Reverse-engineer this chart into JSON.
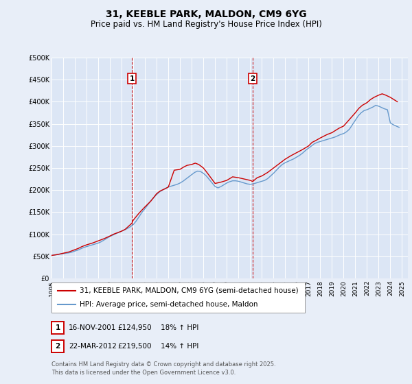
{
  "title": "31, KEEBLE PARK, MALDON, CM9 6YG",
  "subtitle": "Price paid vs. HM Land Registry's House Price Index (HPI)",
  "ylabel_ticks": [
    "£0",
    "£50K",
    "£100K",
    "£150K",
    "£200K",
    "£250K",
    "£300K",
    "£350K",
    "£400K",
    "£450K",
    "£500K"
  ],
  "ytick_values": [
    0,
    50000,
    100000,
    150000,
    200000,
    250000,
    300000,
    350000,
    400000,
    450000,
    500000
  ],
  "ylim": [
    0,
    500000
  ],
  "xlim_start": 1995.0,
  "xlim_end": 2025.5,
  "red_line_label": "31, KEEBLE PARK, MALDON, CM9 6YG (semi-detached house)",
  "blue_line_label": "HPI: Average price, semi-detached house, Maldon",
  "marker1_date_x": 2001.88,
  "marker1_y": 124950,
  "marker1_label": "1",
  "marker2_date_x": 2012.22,
  "marker2_y": 219500,
  "marker2_label": "2",
  "footer": "Contains HM Land Registry data © Crown copyright and database right 2025.\nThis data is licensed under the Open Government Licence v3.0.",
  "background_color": "#e8eef8",
  "plot_bg_color": "#dce6f5",
  "red_color": "#cc0000",
  "blue_color": "#6699cc",
  "vline_color": "#cc0000",
  "grid_color": "#ffffff",
  "title_fontsize": 10,
  "subtitle_fontsize": 8.5,
  "tick_fontsize": 7,
  "legend_fontsize": 7.5,
  "footer_fontsize": 6,
  "hpi_years": [
    1995,
    1995.25,
    1995.5,
    1995.75,
    1996,
    1996.25,
    1996.5,
    1996.75,
    1997,
    1997.25,
    1997.5,
    1997.75,
    1998,
    1998.25,
    1998.5,
    1998.75,
    1999,
    1999.25,
    1999.5,
    1999.75,
    2000,
    2000.25,
    2000.5,
    2000.75,
    2001,
    2001.25,
    2001.5,
    2001.75,
    2002,
    2002.25,
    2002.5,
    2002.75,
    2003,
    2003.25,
    2003.5,
    2003.75,
    2004,
    2004.25,
    2004.5,
    2004.75,
    2005,
    2005.25,
    2005.5,
    2005.75,
    2006,
    2006.25,
    2006.5,
    2006.75,
    2007,
    2007.25,
    2007.5,
    2007.75,
    2008,
    2008.25,
    2008.5,
    2008.75,
    2009,
    2009.25,
    2009.5,
    2009.75,
    2010,
    2010.25,
    2010.5,
    2010.75,
    2011,
    2011.25,
    2011.5,
    2011.75,
    2012,
    2012.25,
    2012.5,
    2012.75,
    2013,
    2013.25,
    2013.5,
    2013.75,
    2014,
    2014.25,
    2014.5,
    2014.75,
    2015,
    2015.25,
    2015.5,
    2015.75,
    2016,
    2016.25,
    2016.5,
    2016.75,
    2017,
    2017.25,
    2017.5,
    2017.75,
    2018,
    2018.25,
    2018.5,
    2018.75,
    2019,
    2019.25,
    2019.5,
    2019.75,
    2020,
    2020.25,
    2020.5,
    2020.75,
    2021,
    2021.25,
    2021.5,
    2021.75,
    2022,
    2022.25,
    2022.5,
    2022.75,
    2023,
    2023.25,
    2023.5,
    2023.75,
    2024,
    2024.25,
    2024.5,
    2024.75
  ],
  "hpi_values": [
    52000,
    53000,
    54000,
    55000,
    56000,
    57000,
    58000,
    59500,
    62000,
    64000,
    67000,
    70000,
    72000,
    74000,
    76000,
    78000,
    80000,
    83000,
    87000,
    91000,
    95000,
    98000,
    101000,
    104000,
    107000,
    110000,
    113000,
    117000,
    122000,
    130000,
    140000,
    150000,
    158000,
    167000,
    176000,
    183000,
    190000,
    196000,
    200000,
    204000,
    207000,
    209000,
    211000,
    213000,
    216000,
    220000,
    225000,
    230000,
    235000,
    240000,
    243000,
    242000,
    238000,
    232000,
    224000,
    216000,
    208000,
    205000,
    208000,
    212000,
    216000,
    219000,
    221000,
    221000,
    220000,
    218000,
    216000,
    214000,
    213000,
    214000,
    216000,
    218000,
    220000,
    222000,
    226000,
    232000,
    238000,
    245000,
    252000,
    258000,
    262000,
    265000,
    268000,
    271000,
    275000,
    279000,
    284000,
    290000,
    295000,
    300000,
    305000,
    308000,
    310000,
    312000,
    314000,
    316000,
    318000,
    320000,
    323000,
    326000,
    328000,
    332000,
    338000,
    348000,
    358000,
    368000,
    375000,
    380000,
    382000,
    385000,
    388000,
    392000,
    390000,
    387000,
    384000,
    382000,
    352000,
    348000,
    345000,
    342000
  ],
  "price_years": [
    1995,
    1995.5,
    1996,
    1996.5,
    1997,
    1997.3,
    1997.6,
    1998,
    1998.5,
    1999,
    1999.5,
    2000,
    2000.3,
    2000.6,
    2001,
    2001.3,
    2001.88,
    2002,
    2002.5,
    2003,
    2003.5,
    2004,
    2004.3,
    2004.8,
    2005,
    2005.5,
    2006,
    2006.3,
    2006.6,
    2007,
    2007.3,
    2007.6,
    2008,
    2008.3,
    2009,
    2009.5,
    2010,
    2010.5,
    2011,
    2011.5,
    2012,
    2012.22,
    2012.6,
    2013,
    2013.5,
    2014,
    2014.5,
    2015,
    2015.5,
    2016,
    2016.5,
    2017,
    2017.3,
    2017.6,
    2018,
    2018.3,
    2018.6,
    2019,
    2019.3,
    2019.6,
    2020,
    2020.5,
    2021,
    2021.3,
    2021.6,
    2022,
    2022.3,
    2022.6,
    2023,
    2023.3,
    2023.6,
    2024,
    2024.3,
    2024.6
  ],
  "price_values": [
    52000,
    54000,
    57000,
    60000,
    65000,
    68000,
    72000,
    76000,
    80000,
    85000,
    90000,
    96000,
    100000,
    103000,
    107000,
    111000,
    124950,
    132000,
    148000,
    162000,
    175000,
    192000,
    198000,
    204000,
    207000,
    245000,
    247000,
    252000,
    256000,
    258000,
    261000,
    258000,
    250000,
    240000,
    215000,
    218000,
    222000,
    230000,
    228000,
    225000,
    222000,
    219500,
    228000,
    232000,
    240000,
    250000,
    260000,
    270000,
    278000,
    285000,
    292000,
    300000,
    308000,
    312000,
    318000,
    322000,
    326000,
    330000,
    335000,
    340000,
    345000,
    360000,
    375000,
    385000,
    392000,
    398000,
    405000,
    410000,
    415000,
    418000,
    415000,
    410000,
    405000,
    400000
  ]
}
